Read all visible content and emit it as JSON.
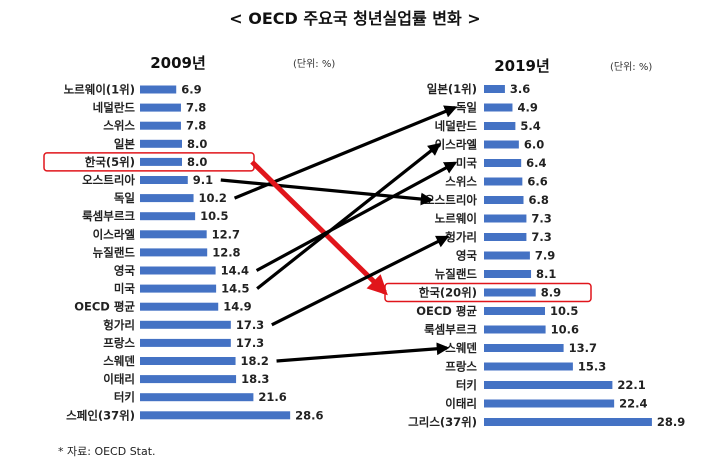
{
  "title": "< OECD 주요국 청년실업률 변화 >",
  "source_note": "* 자료: OECD Stat.",
  "colors": {
    "bar": "#4472c4",
    "arrow": "#000000",
    "highlight_arrow": "#e0151b",
    "highlight_box": "#e0151b"
  },
  "chart_data": [
    {
      "type": "bar",
      "orientation": "horizontal",
      "title": "2009년",
      "unit": "(단위: %)",
      "categories": [
        "노르웨이(1위)",
        "네덜란드",
        "스위스",
        "일본",
        "한국(5위)",
        "오스트리아",
        "독일",
        "룩셈부르크",
        "이스라엘",
        "뉴질랜드",
        "영국",
        "미국",
        "OECD 평균",
        "헝가리",
        "프랑스",
        "스웨덴",
        "이태리",
        "터키",
        "스페인(37위)"
      ],
      "values": [
        6.9,
        7.8,
        7.8,
        8.0,
        8.0,
        9.1,
        10.2,
        10.5,
        12.7,
        12.8,
        14.4,
        14.5,
        14.9,
        17.3,
        17.3,
        18.2,
        18.3,
        21.6,
        28.6
      ],
      "value_labels": [
        "6.9",
        "7.8",
        "7.8",
        "8.0",
        "8.0",
        "9.1",
        "10.2",
        "10.5",
        "12.7",
        "12.8",
        "14.4",
        "14.5",
        "14.9",
        "17.3",
        "17.3",
        "18.2",
        "18.3",
        "21.6",
        "28.6"
      ],
      "highlight": "한국(5위)"
    },
    {
      "type": "bar",
      "orientation": "horizontal",
      "title": "2019년",
      "unit": "(단위: %)",
      "categories": [
        "일본(1위)",
        "독일",
        "네덜란드",
        "이스라엘",
        "미국",
        "스위스",
        "오스트리아",
        "노르웨이",
        "헝가리",
        "영국",
        "뉴질랜드",
        "한국(20위)",
        "OECD 평균",
        "룩셈부르크",
        "스웨덴",
        "프랑스",
        "터키",
        "이태리",
        "그리스(37위)"
      ],
      "values": [
        3.6,
        4.9,
        5.4,
        6.0,
        6.4,
        6.6,
        6.8,
        7.3,
        7.3,
        7.9,
        8.1,
        8.9,
        10.5,
        10.6,
        13.7,
        15.3,
        22.1,
        22.4,
        28.9
      ],
      "value_labels": [
        "3.6",
        "4.9",
        "5.4",
        "6.0",
        "6.4",
        "6.6",
        "6.8",
        "7.3",
        "7.3",
        "7.9",
        "8.1",
        "8.9",
        "10.5",
        "10.6",
        "13.7",
        "15.3",
        "22.1",
        "22.4",
        "28.9"
      ],
      "highlight": "한국(20위)"
    }
  ],
  "rank_changes": [
    {
      "from": "독일",
      "to": "독일",
      "highlight": false
    },
    {
      "from": "오스트리아",
      "to": "오스트리아",
      "highlight": false
    },
    {
      "from": "한국(5위)",
      "to": "한국(20위)",
      "highlight": true
    },
    {
      "from": "영국",
      "to": "미국",
      "highlight": false
    },
    {
      "from": "미국",
      "to": "이스라엘",
      "highlight": false
    },
    {
      "from": "헝가리",
      "to": "헝가리",
      "highlight": false
    },
    {
      "from": "스웨덴",
      "to": "스웨덴",
      "highlight": false
    }
  ]
}
